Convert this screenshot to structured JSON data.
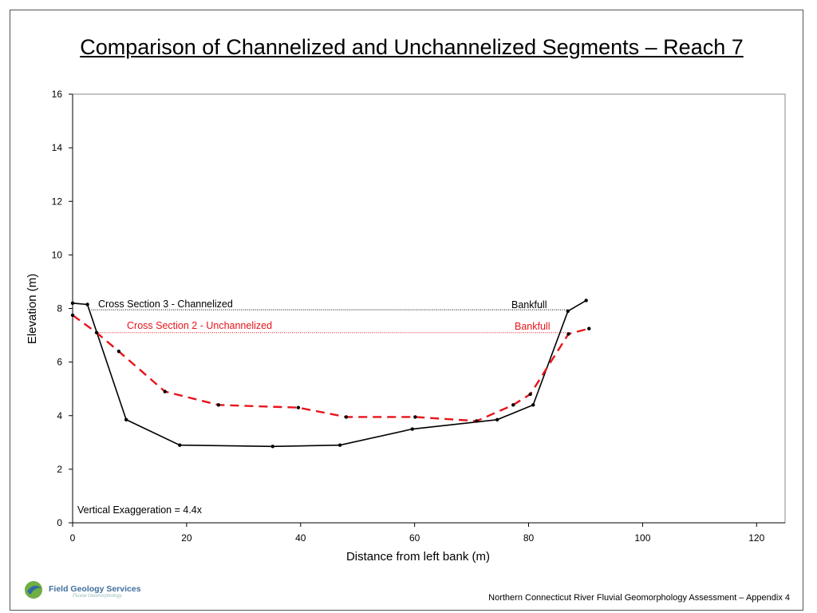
{
  "slide": {
    "title": "Comparison of Channelized and Unchannelized Segments – Reach 7",
    "footer": "Northern Connecticut River Fluvial Geomorphology Assessment – Appendix 4",
    "logo_text": "Field Geology Services",
    "logo_subtext": "Fluvial Geomorphology"
  },
  "chart_data": {
    "type": "line",
    "title": "",
    "xlabel": "Distance from left bank (m)",
    "ylabel": "Elevation (m)",
    "xlim": [
      0,
      125
    ],
    "ylim": [
      0,
      16
    ],
    "xticks": [
      0,
      20,
      40,
      60,
      80,
      100,
      120
    ],
    "yticks": [
      0,
      2,
      4,
      6,
      8,
      10,
      12,
      14,
      16
    ],
    "grid": false,
    "series": [
      {
        "name": "Cross Section 3 - Channelized",
        "color": "#000000",
        "style": "solid",
        "x": [
          0,
          2.6,
          9.4,
          18.8,
          35.1,
          46.9,
          59.6,
          74.5,
          80.8,
          86.9,
          90.1
        ],
        "y": [
          8.2,
          8.15,
          3.85,
          2.9,
          2.85,
          2.9,
          3.5,
          3.85,
          4.4,
          7.9,
          8.3
        ]
      },
      {
        "name": "Cross Section 2 - Unchannelized",
        "color": "#e8141b",
        "style": "dashed",
        "x": [
          0,
          4.2,
          8.1,
          16.2,
          25.6,
          39.6,
          48.0,
          60.1,
          70.9,
          77.3,
          80.3,
          87.0,
          90.6
        ],
        "y": [
          7.75,
          7.1,
          6.4,
          4.9,
          4.4,
          4.3,
          3.95,
          3.95,
          3.8,
          4.4,
          4.8,
          7.05,
          7.25
        ]
      }
    ],
    "reference_lines": [
      {
        "label": "Bankfull",
        "y": 7.95,
        "x_start": 3.3,
        "x_end": 86.9,
        "color": "#000000"
      },
      {
        "label": "Bankfull",
        "y": 7.1,
        "x_start": 4.2,
        "x_end": 87.0,
        "color": "#e8141b"
      }
    ],
    "annotation": "Vertical Exaggeration = 4.4x",
    "legend_placement": "inline-top-left"
  }
}
